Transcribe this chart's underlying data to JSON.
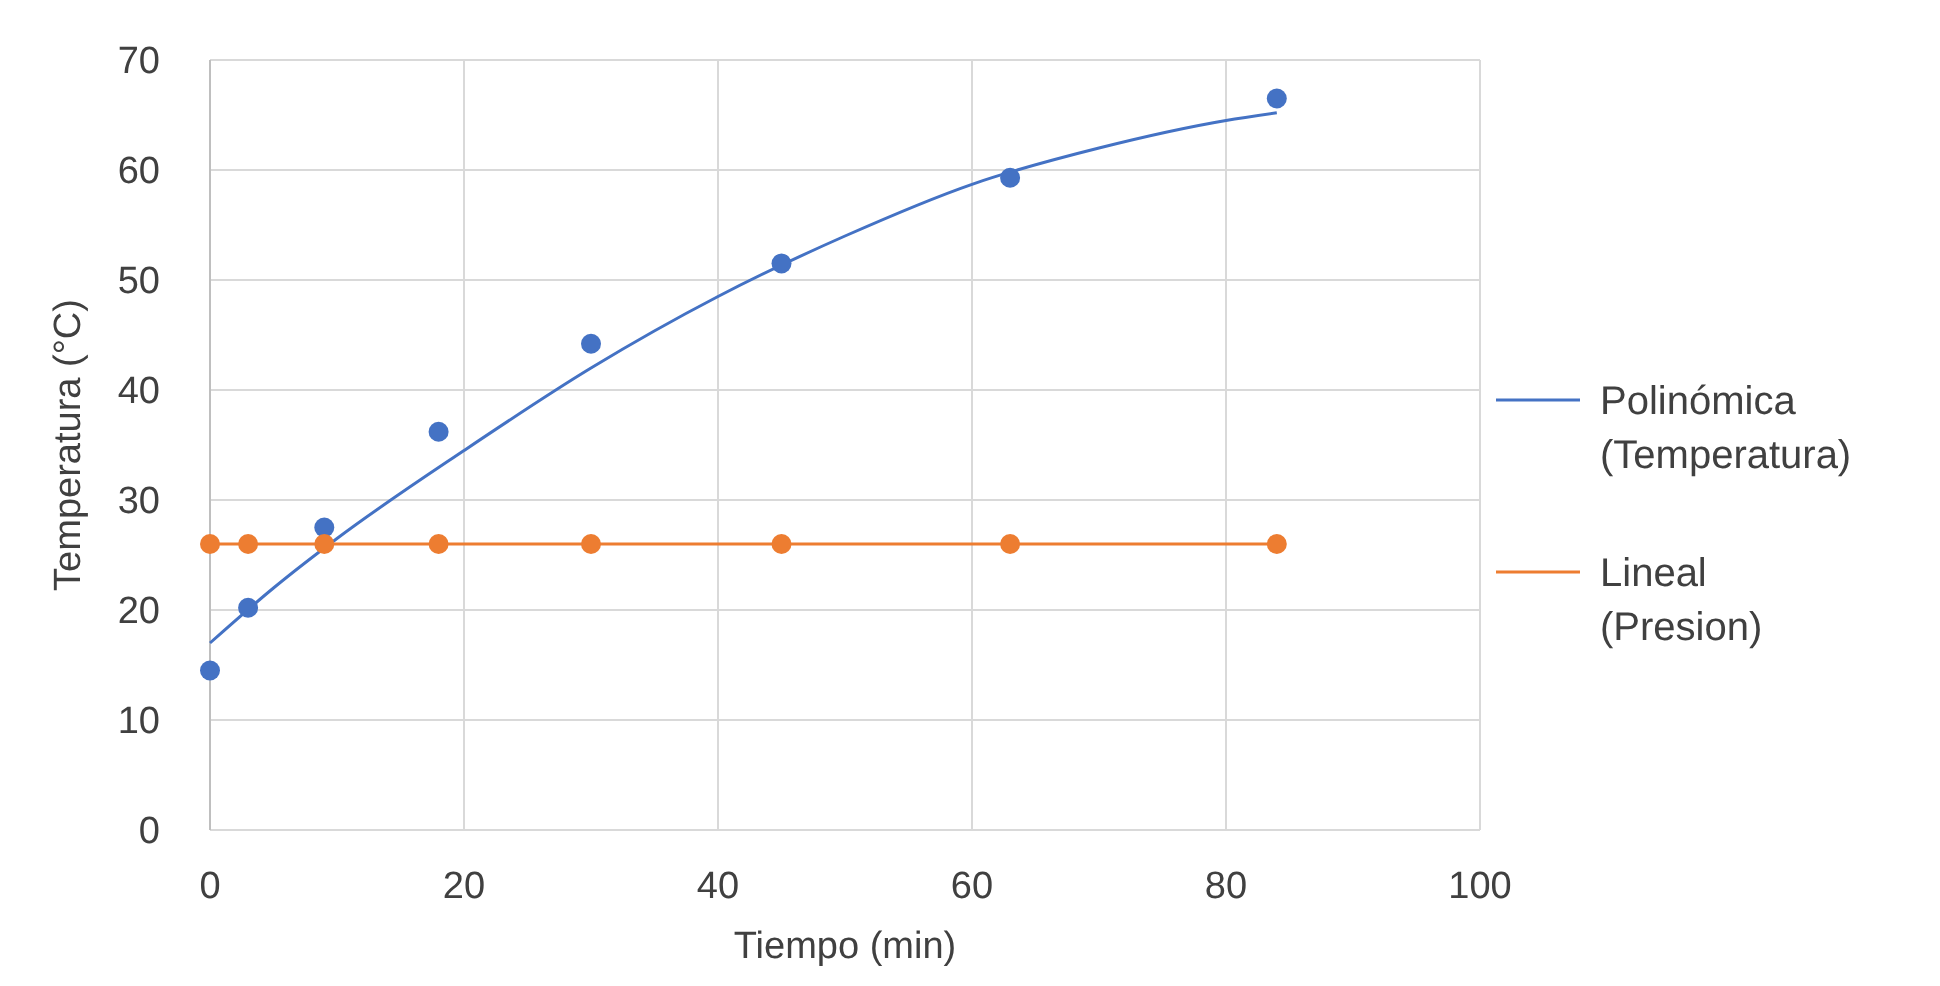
{
  "chart_data": {
    "type": "scatter",
    "xlabel": "Tiempo (min)",
    "ylabel": "Temperatura (°C)",
    "xlim": [
      0,
      100
    ],
    "xticks": [
      0,
      20,
      40,
      60,
      80,
      100
    ],
    "ylim": [
      0,
      70
    ],
    "yticks": [
      0,
      10,
      20,
      30,
      40,
      50,
      60,
      70
    ],
    "grid": true,
    "legend": "right",
    "marker": "circle",
    "series": [
      {
        "name": "Polinómica (Temperatura)",
        "type": "line",
        "marker": "none",
        "color": "#4472c4",
        "x": [
          0,
          5,
          10,
          20,
          30,
          40,
          50,
          60,
          70,
          80,
          84
        ],
        "values": [
          17,
          22,
          26.5,
          34.5,
          42,
          48.5,
          54,
          58.7,
          62,
          64.5,
          65.2
        ]
      },
      {
        "name": "Lineal (Presion)",
        "type": "line",
        "marker": "none",
        "color": "#ed7d31",
        "x": [
          0,
          84
        ],
        "values": [
          26,
          26
        ]
      },
      {
        "color": "#4472c4",
        "x": [
          0,
          3,
          9,
          18,
          30,
          45,
          63,
          84
        ],
        "values": [
          14.5,
          20.2,
          27.5,
          36.2,
          44.2,
          51.5,
          59.3,
          66.5
        ]
      },
      {
        "color": "#ed7d31",
        "x": [
          0,
          3,
          9,
          18,
          30,
          45,
          63,
          84
        ],
        "values": [
          26,
          26,
          26,
          26,
          26,
          26,
          26,
          26
        ]
      }
    ]
  }
}
